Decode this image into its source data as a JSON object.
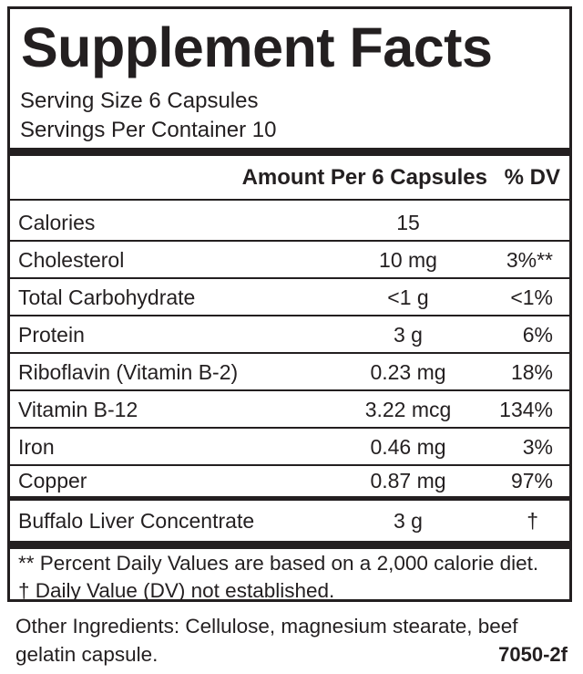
{
  "label": {
    "title": "Supplement Facts",
    "serving_size": "Serving Size 6 Capsules",
    "servings_per_container": "Servings Per Container 10",
    "header_amount": "Amount Per 6 Capsules",
    "header_dv": "% DV",
    "rows": [
      {
        "name": "Calories",
        "amount": "15",
        "dv": ""
      },
      {
        "name": "Cholesterol",
        "amount": "10 mg",
        "dv": "3%**"
      },
      {
        "name": "Total Carbohydrate",
        "amount": "<1 g",
        "dv": "<1%"
      },
      {
        "name": "Protein",
        "amount": "3 g",
        "dv": "6%"
      },
      {
        "name": "Riboflavin (Vitamin B-2)",
        "amount": "0.23 mg",
        "dv": "18%"
      },
      {
        "name": "Vitamin B-12",
        "amount": "3.22 mcg",
        "dv": "134%"
      },
      {
        "name": "Iron",
        "amount": "0.46 mg",
        "dv": "3%"
      },
      {
        "name": "Copper",
        "amount": "0.87 mg",
        "dv": "97%"
      }
    ],
    "blend": {
      "name": "Buffalo Liver Concentrate",
      "amount": "3 g",
      "dv": "†"
    },
    "footnote_1": "** Percent Daily Values are based on a 2,000 calorie diet.",
    "footnote_2": "† Daily Value (DV) not established."
  },
  "other_ingredients_1": "Other Ingredients:  Cellulose, magnesium stearate, beef",
  "other_ingredients_2": "gelatin capsule.",
  "product_code": "7050-2f"
}
